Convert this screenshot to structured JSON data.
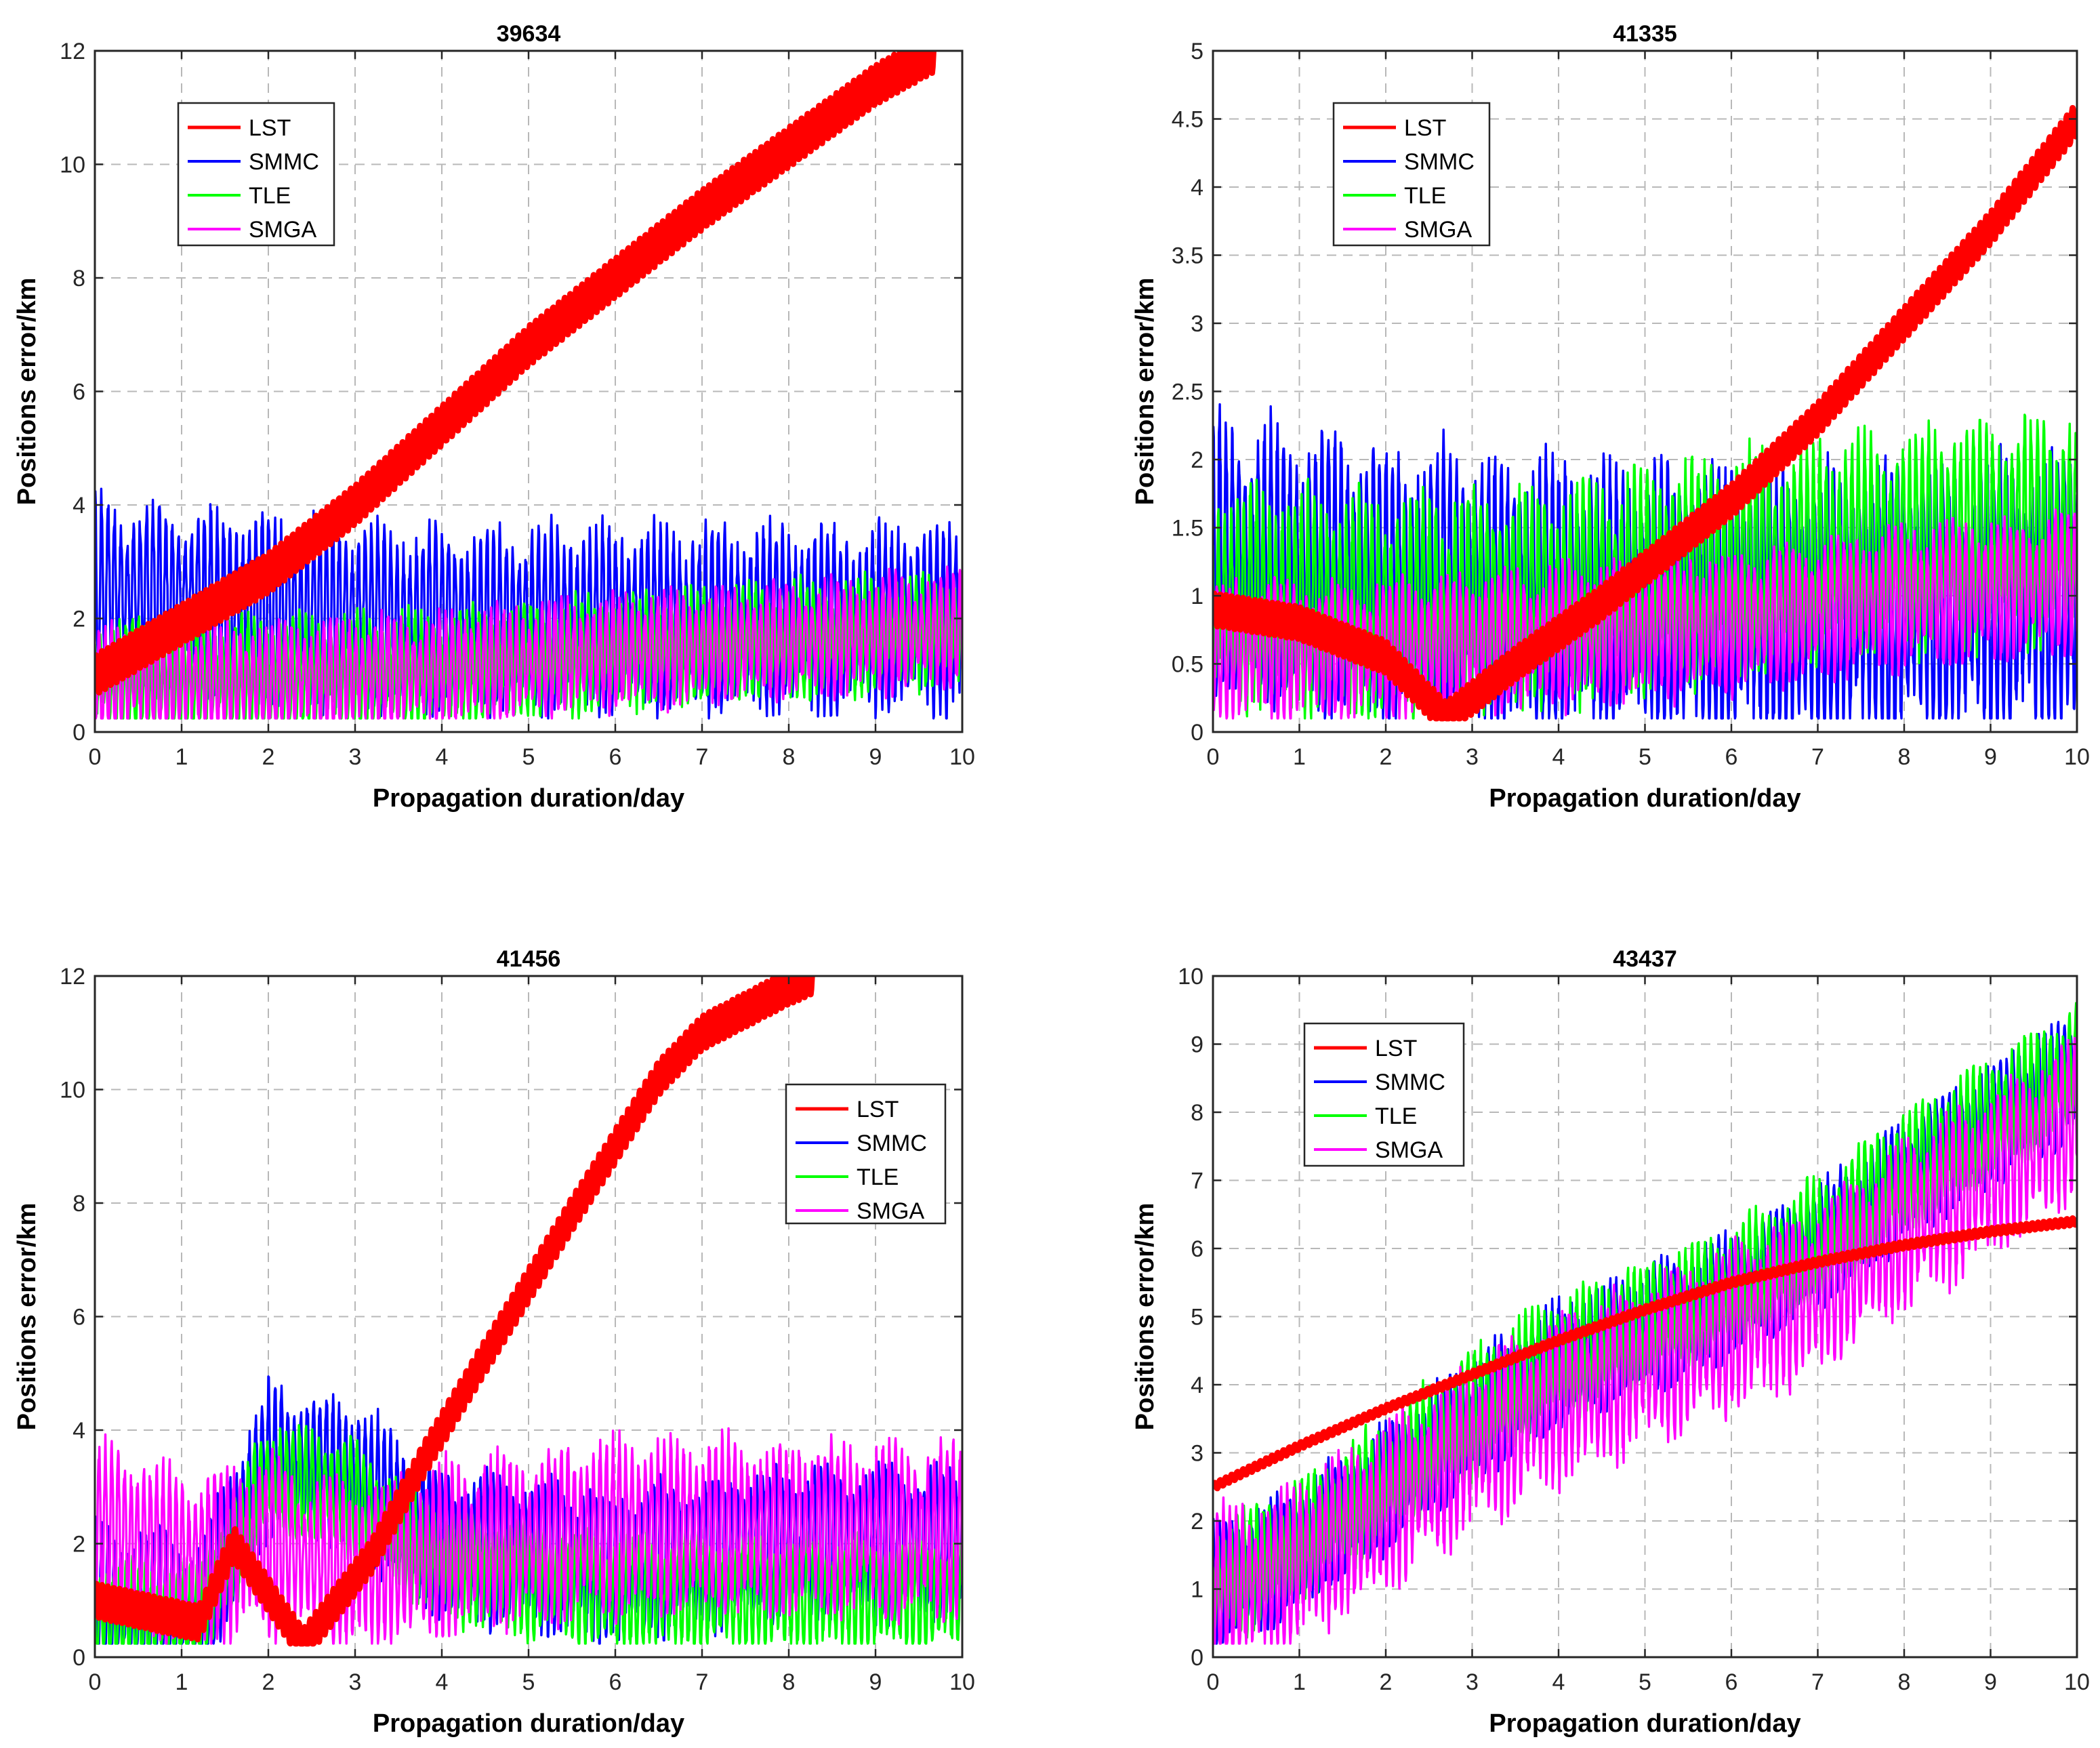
{
  "chart_data": [
    {
      "type": "line",
      "title": "39634",
      "xlabel": "Propagation duration/day",
      "ylabel": "Positions error/km",
      "xlim": [
        0,
        10
      ],
      "ylim": [
        0,
        12
      ],
      "xticks": [
        "0",
        "1",
        "2",
        "3",
        "4",
        "5",
        "6",
        "7",
        "8",
        "9",
        "10"
      ],
      "yticks": [
        "0",
        "2",
        "4",
        "6",
        "8",
        "10",
        "12"
      ],
      "grid": true,
      "legend_position": "top-left",
      "series": [
        {
          "name": "LST",
          "color": "#ff0000",
          "x": [
            0,
            2,
            3,
            4,
            5,
            6,
            7,
            8,
            9,
            9.7
          ],
          "values": [
            1.0,
            2.8,
            4.0,
            5.4,
            6.8,
            8.0,
            9.2,
            10.3,
            11.4,
            12.0
          ],
          "osc_amplitude": 0.35
        },
        {
          "name": "SMMC",
          "color": "#0000ff",
          "x": [
            0,
            2,
            4,
            6,
            8,
            10
          ],
          "values": [
            2.5,
            2.2,
            2.0,
            2.0,
            2.0,
            2.0
          ],
          "osc_amplitude": 1.6
        },
        {
          "name": "TLE",
          "color": "#00ff00",
          "x": [
            0,
            2,
            4,
            6,
            8,
            10
          ],
          "values": [
            1.0,
            1.0,
            1.1,
            1.4,
            1.6,
            1.8
          ],
          "osc_amplitude": 1.0
        },
        {
          "name": "SMGA",
          "color": "#ff00ff",
          "x": [
            0,
            2,
            4,
            6,
            8,
            10
          ],
          "values": [
            0.9,
            0.9,
            1.1,
            1.4,
            1.6,
            1.8
          ],
          "osc_amplitude": 1.0
        }
      ]
    },
    {
      "type": "line",
      "title": "41335",
      "xlabel": "Propagation duration/day",
      "ylabel": "Positions error/km",
      "xlim": [
        0,
        10
      ],
      "ylim": [
        0,
        5
      ],
      "xticks": [
        "0",
        "1",
        "2",
        "3",
        "4",
        "5",
        "6",
        "7",
        "8",
        "9",
        "10"
      ],
      "yticks": [
        "0",
        "0.5",
        "1",
        "1.5",
        "2",
        "2.5",
        "3",
        "3.5",
        "4",
        "4.5",
        "5"
      ],
      "grid": true,
      "legend_position": "top-left",
      "series": [
        {
          "name": "LST",
          "color": "#ff0000",
          "x": [
            0,
            1,
            2,
            2.7,
            3.5,
            4.5,
            5,
            6,
            7,
            8,
            9,
            10
          ],
          "values": [
            0.9,
            0.8,
            0.55,
            0.1,
            0.5,
            0.95,
            1.2,
            1.7,
            2.3,
            3.0,
            3.7,
            4.5
          ],
          "osc_amplitude": 0.12
        },
        {
          "name": "SMMC",
          "color": "#0000ff",
          "x": [
            0,
            2,
            4,
            6,
            8,
            10
          ],
          "values": [
            1.3,
            1.1,
            1.0,
            0.9,
            0.9,
            1.0
          ],
          "osc_amplitude": 1.0
        },
        {
          "name": "TLE",
          "color": "#00ff00",
          "x": [
            0,
            2,
            4,
            6,
            8,
            10
          ],
          "values": [
            1.0,
            0.9,
            1.0,
            1.2,
            1.4,
            1.5
          ],
          "osc_amplitude": 0.8
        },
        {
          "name": "SMGA",
          "color": "#ff00ff",
          "x": [
            0,
            2,
            4,
            6,
            8,
            10
          ],
          "values": [
            0.6,
            0.6,
            0.7,
            0.8,
            1.0,
            1.1
          ],
          "osc_amplitude": 0.5
        }
      ]
    },
    {
      "type": "line",
      "title": "41456",
      "xlabel": "Propagation duration/day",
      "ylabel": "Positions error/km",
      "xlim": [
        0,
        10
      ],
      "ylim": [
        0,
        12
      ],
      "xticks": [
        "0",
        "1",
        "2",
        "3",
        "4",
        "5",
        "6",
        "7",
        "8",
        "9",
        "10"
      ],
      "yticks": [
        "0",
        "2",
        "4",
        "6",
        "8",
        "10",
        "12"
      ],
      "grid": true,
      "legend_position": "top-right",
      "series": [
        {
          "name": "LST",
          "color": "#ff0000",
          "x": [
            0,
            1.2,
            1.6,
            2.4,
            3.2,
            3.8,
            4.5,
            5.5,
            6.5,
            7,
            8,
            8.3
          ],
          "values": [
            1.0,
            0.6,
            2.0,
            0.2,
            1.8,
            3.5,
            5.3,
            7.8,
            10.2,
            11.0,
            11.8,
            12.0
          ],
          "osc_amplitude": 0.3
        },
        {
          "name": "SMMC",
          "color": "#0000ff",
          "x": [
            0,
            1.2,
            2,
            3,
            4,
            6,
            8,
            10
          ],
          "values": [
            1.0,
            0.8,
            3.5,
            3.2,
            2.0,
            1.6,
            2.0,
            2.0
          ],
          "osc_amplitude": 1.3
        },
        {
          "name": "TLE",
          "color": "#00ff00",
          "x": [
            0,
            1.2,
            2,
            3,
            4,
            6,
            8,
            10
          ],
          "values": [
            0.7,
            0.6,
            3.2,
            2.8,
            1.6,
            1.1,
            1.1,
            1.1
          ],
          "osc_amplitude": 1.0
        },
        {
          "name": "SMGA",
          "color": "#ff00ff",
          "x": [
            0,
            1.2,
            2,
            3,
            4,
            6,
            8,
            10
          ],
          "values": [
            2.3,
            1.7,
            2.0,
            1.5,
            1.9,
            2.3,
            2.3,
            2.2
          ],
          "osc_amplitude": 1.5
        }
      ]
    },
    {
      "type": "line",
      "title": "43437",
      "xlabel": "Propagation duration/day",
      "ylabel": "Positions error/km",
      "xlim": [
        0,
        10
      ],
      "ylim": [
        0,
        10
      ],
      "xticks": [
        "0",
        "1",
        "2",
        "3",
        "4",
        "5",
        "6",
        "7",
        "8",
        "9",
        "10"
      ],
      "yticks": [
        "0",
        "1",
        "2",
        "3",
        "4",
        "5",
        "6",
        "7",
        "8",
        "9",
        "10"
      ],
      "grid": true,
      "legend_position": "top-left",
      "series": [
        {
          "name": "LST",
          "color": "#ff0000",
          "x": [
            0,
            1,
            2,
            3,
            4,
            5,
            6,
            7,
            8,
            9,
            10
          ],
          "values": [
            2.5,
            3.1,
            3.65,
            4.15,
            4.65,
            5.1,
            5.5,
            5.8,
            6.05,
            6.25,
            6.4
          ],
          "osc_amplitude": 0.05
        },
        {
          "name": "SMMC",
          "color": "#0000ff",
          "x": [
            0,
            1,
            2,
            3,
            4,
            5,
            6,
            7,
            8,
            9,
            10
          ],
          "values": [
            1.0,
            1.6,
            2.5,
            3.5,
            4.3,
            4.8,
            5.3,
            6.0,
            7.0,
            7.8,
            8.6
          ],
          "osc_amplitude": 0.9
        },
        {
          "name": "TLE",
          "color": "#00ff00",
          "x": [
            0,
            1,
            2,
            3,
            4,
            5,
            6,
            7,
            8,
            9,
            10
          ],
          "values": [
            1.05,
            1.7,
            2.6,
            3.6,
            4.4,
            4.9,
            5.4,
            6.1,
            7.1,
            7.9,
            8.7
          ],
          "osc_amplitude": 0.9
        },
        {
          "name": "SMGA",
          "color": "#ff00ff",
          "x": [
            0,
            1,
            2,
            3,
            4,
            5,
            6,
            7,
            8,
            9,
            10
          ],
          "values": [
            0.9,
            1.4,
            2.2,
            3.1,
            3.8,
            4.3,
            4.8,
            5.4,
            6.3,
            7.1,
            7.9
          ],
          "osc_amplitude": 1.2
        }
      ]
    }
  ]
}
